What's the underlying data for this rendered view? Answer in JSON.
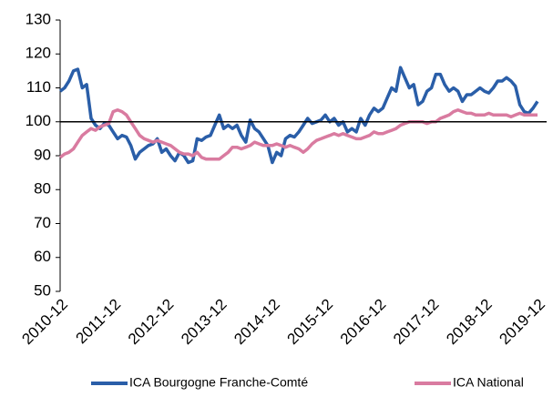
{
  "chart_data": {
    "type": "line",
    "categories": [
      "2010-12",
      null,
      null,
      null,
      null,
      null,
      null,
      null,
      null,
      null,
      null,
      null,
      "2011-12",
      null,
      null,
      null,
      null,
      null,
      null,
      null,
      null,
      null,
      null,
      null,
      "2012-12",
      null,
      null,
      null,
      null,
      null,
      null,
      null,
      null,
      null,
      null,
      null,
      "2013-12",
      null,
      null,
      null,
      null,
      null,
      null,
      null,
      null,
      null,
      null,
      null,
      "2014-12",
      null,
      null,
      null,
      null,
      null,
      null,
      null,
      null,
      null,
      null,
      null,
      "2015-12",
      null,
      null,
      null,
      null,
      null,
      null,
      null,
      null,
      null,
      null,
      null,
      "2016-12",
      null,
      null,
      null,
      null,
      null,
      null,
      null,
      null,
      null,
      null,
      null,
      "2017-12",
      null,
      null,
      null,
      null,
      null,
      null,
      null,
      null,
      null,
      null,
      null,
      "2018-12",
      null,
      null,
      null,
      null,
      null,
      null,
      null,
      null,
      null,
      null,
      null,
      "2019-12"
    ],
    "series": [
      {
        "name": "ICA Bourgogne Franche-Comté",
        "color": "#2a5ea8",
        "values": [
          109,
          110,
          112,
          115,
          115.5,
          110,
          111,
          101,
          99,
          98,
          99.5,
          99,
          97,
          95,
          96,
          95.5,
          93,
          89,
          91,
          92,
          93,
          93.5,
          95,
          91,
          92,
          90,
          88.5,
          91,
          90,
          88,
          88.5,
          95,
          94.5,
          95.5,
          96,
          99,
          102,
          98,
          99,
          98,
          99,
          96,
          94,
          100.5,
          98,
          97,
          95,
          93,
          88,
          91,
          90,
          95,
          96,
          95.5,
          97,
          99,
          101,
          99.5,
          100,
          100.5,
          102,
          100,
          101,
          99,
          100,
          97,
          98,
          97,
          101,
          99,
          102,
          104,
          103,
          104,
          107,
          110,
          109,
          116,
          113,
          110,
          111,
          105,
          106,
          109,
          110,
          114,
          114,
          111,
          109,
          110,
          109,
          106,
          108,
          108,
          109,
          110,
          109,
          108.5,
          110,
          112,
          112,
          113,
          112,
          110.5,
          105,
          103,
          102.5,
          104,
          106
        ]
      },
      {
        "name": "ICA National",
        "color": "#d97ba0",
        "values": [
          89.5,
          90.5,
          91,
          92,
          94,
          96,
          97,
          98,
          97.5,
          98.5,
          99,
          99.5,
          103,
          103.5,
          103,
          102,
          100,
          98,
          96,
          95,
          94.5,
          94,
          94.5,
          94,
          93.5,
          93,
          92,
          91,
          90.5,
          90.5,
          90,
          91,
          89.5,
          89,
          89,
          89,
          89,
          90,
          91,
          92.5,
          92.5,
          92,
          92.5,
          93,
          94,
          93.5,
          93,
          93,
          93,
          93.5,
          93,
          92.5,
          93,
          92.5,
          92,
          91,
          92,
          93.5,
          94.5,
          95,
          95.5,
          96,
          96.5,
          96,
          96.5,
          96,
          95.5,
          95,
          95,
          95.5,
          96,
          97,
          96.5,
          96.5,
          97,
          97.5,
          98,
          99,
          99.5,
          100,
          100,
          100,
          100,
          99.5,
          100,
          100,
          101,
          101.5,
          102,
          103,
          103.5,
          103,
          102.5,
          102.5,
          102,
          102,
          102,
          102.5,
          102,
          102,
          102,
          102,
          101.5,
          102,
          102.5,
          102,
          102,
          102,
          102
        ]
      }
    ],
    "ylim": [
      50,
      130
    ],
    "yticks": [
      50,
      60,
      70,
      80,
      90,
      100,
      110,
      120,
      130
    ],
    "reference_line": 100,
    "legend": "bottom"
  }
}
